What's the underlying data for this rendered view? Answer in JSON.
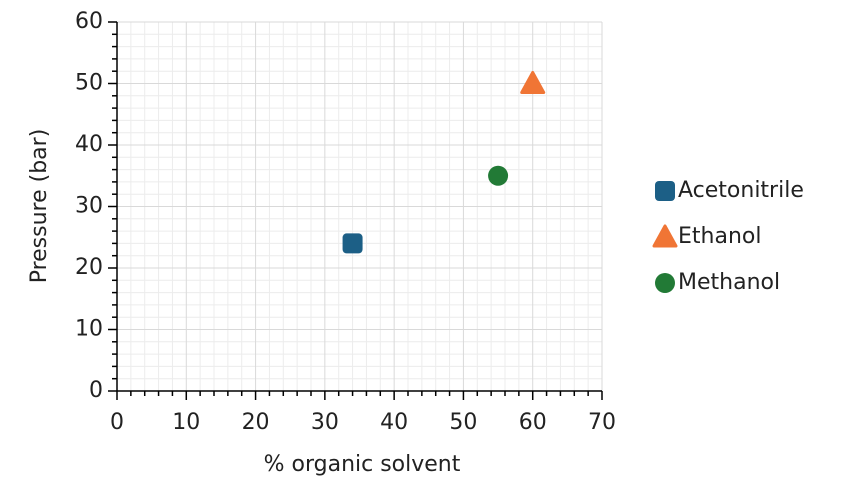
{
  "chart_data": {
    "type": "scatter",
    "x_label": "% organic solvent",
    "y_label": "Pressure (bar)",
    "xlim": [
      0,
      70
    ],
    "xticks": [
      0,
      10,
      20,
      30,
      40,
      50,
      60,
      70
    ],
    "ylim": [
      0,
      60
    ],
    "yticks": [
      0,
      10,
      20,
      30,
      40,
      50,
      60
    ],
    "grid": true,
    "minor_grid": true,
    "legend": "right",
    "series": [
      {
        "name": "Acetonitrile",
        "color": "#1c5f86",
        "marker": "square",
        "x": [
          34
        ],
        "values": [
          24
        ]
      },
      {
        "name": "Ethanol",
        "color": "#f07535",
        "marker": "triangle",
        "x": [
          60
        ],
        "values": [
          50
        ]
      },
      {
        "name": "Methanol",
        "color": "#227a36",
        "marker": "circle",
        "x": [
          55
        ],
        "values": [
          35
        ]
      }
    ]
  }
}
